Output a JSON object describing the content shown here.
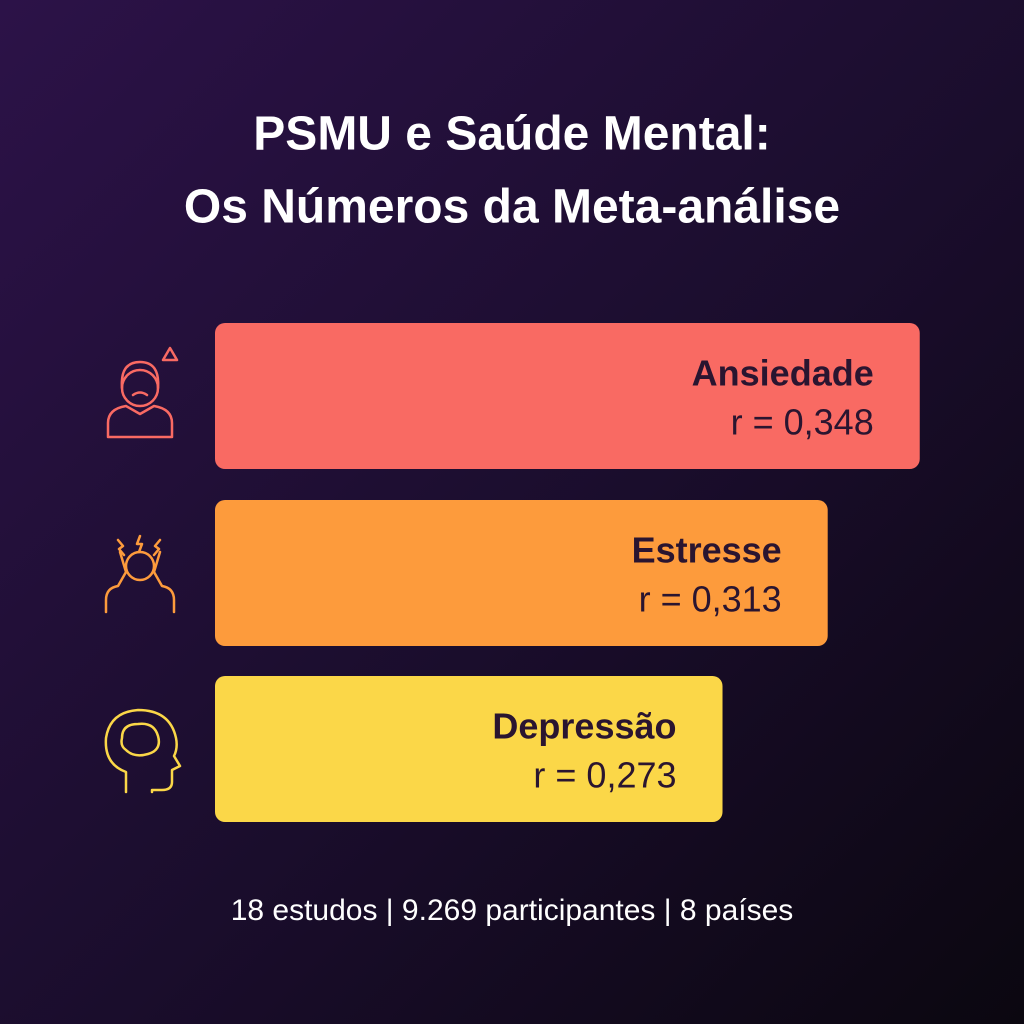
{
  "chart_data": {
    "type": "hbar",
    "title": [
      "PSMU e Saúde Mental:",
      "Os Números da Meta-análise"
    ],
    "categories": [
      "Ansiedade",
      "Estresse",
      "Depressão"
    ],
    "values": [
      0.348,
      0.313,
      0.273
    ],
    "value_labels": [
      "r = 0,348",
      "r = 0,313",
      "r = 0,273"
    ],
    "colors": [
      "#f96a63",
      "#fd9b3c",
      "#fbd748"
    ],
    "xlim": [
      0.08,
      0.35
    ],
    "footer": "18 estudos | 9.269 participantes | 8 países"
  }
}
